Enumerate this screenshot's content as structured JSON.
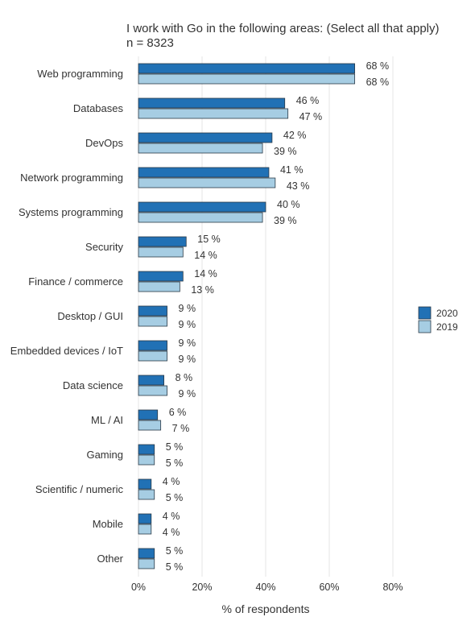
{
  "chart_data": {
    "type": "bar",
    "orientation": "horizontal",
    "title": "I work with Go in the following areas: (Select all that apply)",
    "subtitle": "n = 8323",
    "xlabel": "% of respondents",
    "ylabel": "",
    "xlim": [
      0,
      80
    ],
    "xticks": [
      0,
      20,
      40,
      60,
      80
    ],
    "xtick_labels": [
      "0%",
      "20%",
      "40%",
      "60%",
      "80%"
    ],
    "grid": "vertical",
    "legend_position": "right",
    "categories": [
      "Web programming",
      "Databases",
      "DevOps",
      "Network programming",
      "Systems programming",
      "Security",
      "Finance / commerce",
      "Desktop / GUI",
      "Embedded devices / IoT",
      "Data science",
      "ML / AI",
      "Gaming",
      "Scientific / numeric",
      "Mobile",
      "Other"
    ],
    "series": [
      {
        "name": "2020",
        "color": "#2171b5",
        "values": [
          68,
          46,
          42,
          41,
          40,
          15,
          14,
          9,
          9,
          8,
          6,
          5,
          4,
          4,
          5
        ],
        "labels": [
          "68 %",
          "46 %",
          "42 %",
          "41 %",
          "40 %",
          "15 %",
          "14 %",
          "9 %",
          "9 %",
          "8 %",
          "6 %",
          "5 %",
          "4 %",
          "4 %",
          "5 %"
        ]
      },
      {
        "name": "2019",
        "color": "#a6cde3",
        "values": [
          68,
          47,
          39,
          43,
          39,
          14,
          13,
          9,
          9,
          9,
          7,
          5,
          5,
          4,
          5
        ],
        "labels": [
          "68 %",
          "47 %",
          "39 %",
          "43 %",
          "39 %",
          "14 %",
          "13 %",
          "9 %",
          "9 %",
          "9 %",
          "7 %",
          "5 %",
          "5 %",
          "4 %",
          "5 %"
        ]
      }
    ]
  }
}
